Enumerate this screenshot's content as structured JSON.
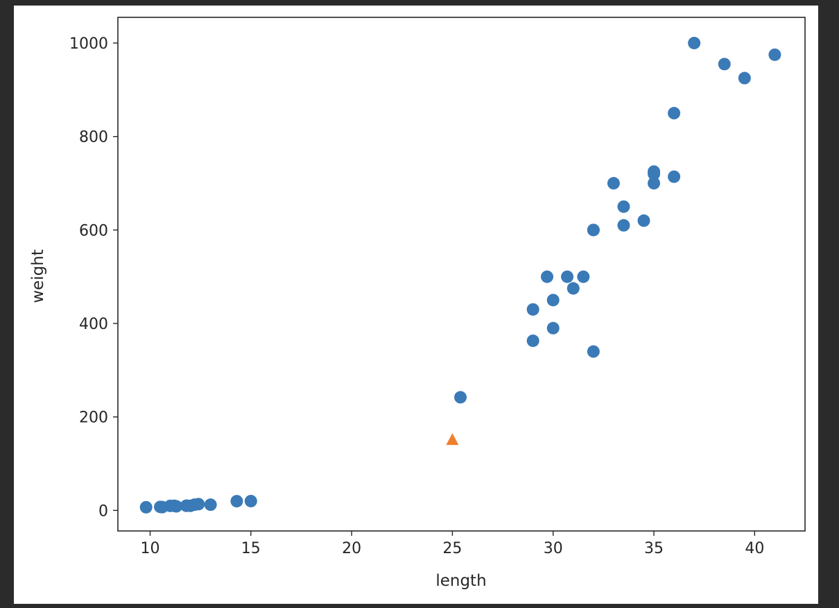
{
  "chart_data": {
    "type": "scatter",
    "title": "",
    "xlabel": "length",
    "ylabel": "weight",
    "xlim": [
      8.4,
      42.5
    ],
    "ylim": [
      -44,
      1055
    ],
    "xticks": [
      10,
      15,
      20,
      25,
      30,
      35,
      40
    ],
    "yticks": [
      0,
      200,
      400,
      600,
      800,
      1000
    ],
    "grid": false,
    "legend": "none",
    "series": [
      {
        "marker": "circle",
        "color": "#3a7ab7",
        "points": [
          {
            "x": 25.4,
            "y": 242
          },
          {
            "x": 29.0,
            "y": 430
          },
          {
            "x": 29.0,
            "y": 363
          },
          {
            "x": 29.7,
            "y": 500
          },
          {
            "x": 30.0,
            "y": 450
          },
          {
            "x": 30.0,
            "y": 390
          },
          {
            "x": 30.7,
            "y": 500
          },
          {
            "x": 31.0,
            "y": 475
          },
          {
            "x": 31.5,
            "y": 500
          },
          {
            "x": 32.0,
            "y": 340
          },
          {
            "x": 32.0,
            "y": 600
          },
          {
            "x": 32.0,
            "y": 600
          },
          {
            "x": 33.0,
            "y": 700
          },
          {
            "x": 33.5,
            "y": 610
          },
          {
            "x": 33.5,
            "y": 650
          },
          {
            "x": 34.5,
            "y": 620
          },
          {
            "x": 35.0,
            "y": 700
          },
          {
            "x": 35.0,
            "y": 725
          },
          {
            "x": 35.0,
            "y": 720
          },
          {
            "x": 36.0,
            "y": 714
          },
          {
            "x": 36.0,
            "y": 850
          },
          {
            "x": 37.0,
            "y": 1000
          },
          {
            "x": 38.5,
            "y": 955
          },
          {
            "x": 39.5,
            "y": 925
          },
          {
            "x": 41.0,
            "y": 975
          },
          {
            "x": 9.8,
            "y": 6.7
          },
          {
            "x": 10.5,
            "y": 7.5
          },
          {
            "x": 10.6,
            "y": 7.0
          },
          {
            "x": 11.0,
            "y": 9.7
          },
          {
            "x": 11.2,
            "y": 9.8
          },
          {
            "x": 11.3,
            "y": 8.7
          },
          {
            "x": 11.8,
            "y": 10.0
          },
          {
            "x": 11.8,
            "y": 9.9
          },
          {
            "x": 12.0,
            "y": 9.8
          },
          {
            "x": 12.2,
            "y": 12.2
          },
          {
            "x": 12.4,
            "y": 13.4
          },
          {
            "x": 13.0,
            "y": 12.2
          },
          {
            "x": 14.3,
            "y": 19.7
          },
          {
            "x": 15.0,
            "y": 19.9
          }
        ]
      },
      {
        "marker": "triangle",
        "color": "#ef7f2f",
        "points": [
          {
            "x": 25.0,
            "y": 150
          }
        ]
      }
    ]
  }
}
